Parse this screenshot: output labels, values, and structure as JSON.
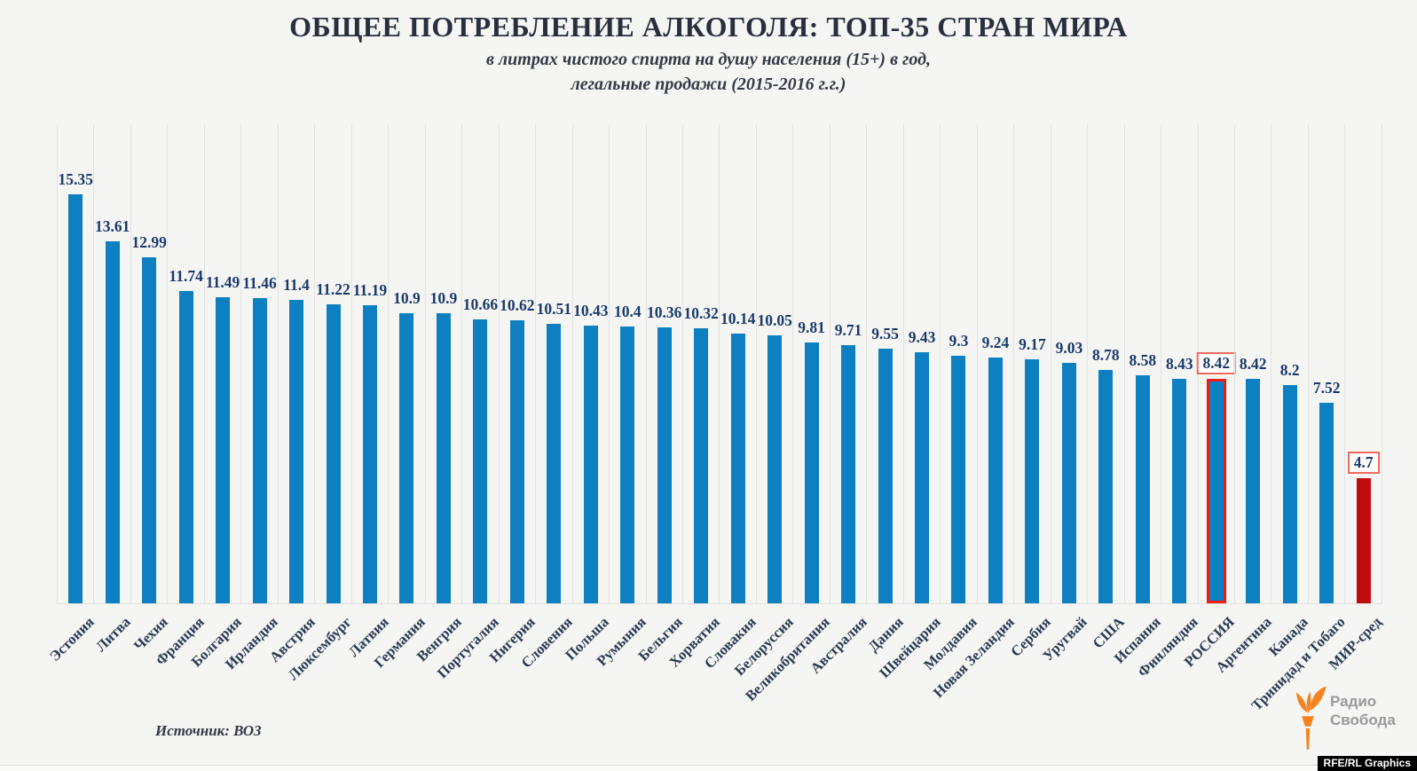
{
  "title": "ОБЩЕЕ ПОТРЕБЛЕНИЕ АЛКОГОЛЯ: ТОП-35 СТРАН МИРА",
  "subtitle_line1": "в литрах чистого спирта на душу населения (15+) в год,",
  "subtitle_line2": "легальные продажи (2015-2016 г.г.)",
  "source": "Источник: ВОЗ",
  "branding": {
    "logo_line1": "Радио",
    "logo_line2": "Свобода",
    "credit": "RFE/RL Graphics",
    "torch_icon": "torch-icon"
  },
  "colors": {
    "background": "#f5f5f3",
    "gridline": "#e2e2e2",
    "bar_blue": "#0e80c1",
    "bar_red": "#c00c0c",
    "highlight_outline": "#ee1b15",
    "value_label_navy": "#1b3a6b",
    "boxed_label_border": "#f0695c",
    "logo_orange": "#f5821f"
  },
  "chart_data": {
    "type": "bar",
    "title": "ОБЩЕЕ ПОТРЕБЛЕНИЕ АЛКОГОЛЯ: ТОП-35 СТРАН МИРА",
    "subtitle": "в литрах чистого спирта на душу населения (15+) в год, легальные продажи (2015-2016 г.г.)",
    "xlabel": "",
    "ylabel": "литры чистого спирта на душу населения (15+) в год",
    "ylim": [
      0,
      18
    ],
    "grid": "vertical",
    "legend": "none",
    "value_labels_shown": true,
    "highlighted_category": "РОССИЯ",
    "world_average_category": "МИР-сред",
    "series": [
      {
        "label": "Эстония",
        "value": "15.35"
      },
      {
        "label": "Литва",
        "value": "13.61"
      },
      {
        "label": "Чехия",
        "value": "12.99"
      },
      {
        "label": "Франция",
        "value": "11.74"
      },
      {
        "label": "Болгария",
        "value": "11.49"
      },
      {
        "label": "Ирландия",
        "value": "11.46"
      },
      {
        "label": "Австрия",
        "value": "11.4"
      },
      {
        "label": "Люксембург",
        "value": "11.22"
      },
      {
        "label": "Латвия",
        "value": "11.19"
      },
      {
        "label": "Германия",
        "value": "10.9"
      },
      {
        "label": "Венгрия",
        "value": "10.9"
      },
      {
        "label": "Португалия",
        "value": "10.66"
      },
      {
        "label": "Нигерия",
        "value": "10.62"
      },
      {
        "label": "Словения",
        "value": "10.51"
      },
      {
        "label": "Польша",
        "value": "10.43"
      },
      {
        "label": "Румыния",
        "value": "10.4"
      },
      {
        "label": "Бельгия",
        "value": "10.36"
      },
      {
        "label": "Хорватия",
        "value": "10.32"
      },
      {
        "label": "Словакия",
        "value": "10.14"
      },
      {
        "label": "Белоруссия",
        "value": "10.05"
      },
      {
        "label": "Великобритания",
        "value": "9.81"
      },
      {
        "label": "Австралия",
        "value": "9.71"
      },
      {
        "label": "Дания",
        "value": "9.55"
      },
      {
        "label": "Швейцария",
        "value": "9.43"
      },
      {
        "label": "Молдавия",
        "value": "9.3"
      },
      {
        "label": "Новая Зеландия",
        "value": "9.24"
      },
      {
        "label": "Сербия",
        "value": "9.17"
      },
      {
        "label": "Уругвай",
        "value": "9.03"
      },
      {
        "label": "США",
        "value": "8.78"
      },
      {
        "label": "Испания",
        "value": "8.58"
      },
      {
        "label": "Финляндия",
        "value": "8.43"
      },
      {
        "label": "РОССИЯ",
        "value": "8.42",
        "highlight": true,
        "boxed": true
      },
      {
        "label": "Аргентина",
        "value": "8.42"
      },
      {
        "label": "Канада",
        "value": "8.2"
      },
      {
        "label": "Тринидад и Тобаго",
        "value": "7.52"
      },
      {
        "label": "МИР-сред",
        "value": "4.7",
        "style": "red",
        "boxed": true
      }
    ]
  }
}
